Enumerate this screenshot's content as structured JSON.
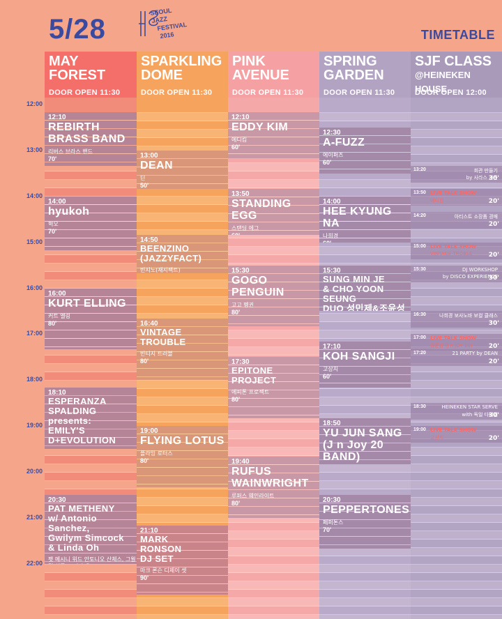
{
  "header": {
    "date": "5/28",
    "logo_lines": [
      "SEOUL",
      "JAZZ",
      "FESTIVAL",
      "2016"
    ],
    "timetable_label": "TIMETABLE"
  },
  "hours": [
    "12:00",
    "13:00",
    "14:00",
    "15:00",
    "16:00",
    "17:00",
    "18:00",
    "19:00",
    "20:00",
    "21:00",
    "22:00"
  ],
  "stages": [
    {
      "title": [
        "MAY",
        "FOREST"
      ],
      "subtitle": "",
      "door": "DOOR OPEN 11:30",
      "head_color": "#f46e6a",
      "stripe_colors": [
        "#f28c7a",
        "#f5a58a"
      ],
      "events": [
        {
          "time": "12:10",
          "name": [
            "REBIRTH",
            "BRASS BAND"
          ],
          "ko": "리버스 브라스 밴드",
          "dur": "70'",
          "start": 130,
          "end": 200,
          "color": "#b58597"
        },
        {
          "time": "14:00",
          "name": [
            "hyukoh"
          ],
          "ko": "혁오",
          "dur": "70'",
          "start": 240,
          "end": 310,
          "color": "#b58597"
        },
        {
          "time": "16:00",
          "name": [
            "KURT ELLING"
          ],
          "ko": "커트 엘링",
          "dur": "80'",
          "start": 360,
          "end": 440,
          "color": "#b58597"
        },
        {
          "time": "18:10",
          "name": [
            "ESPERANZA",
            "SPALDING",
            "presents:",
            "EMILY'S D+EVOLUTION"
          ],
          "ko": "에스페란자 스팔딩 프레젠트: 에밀리스 디+에볼루션",
          "dur": "80'",
          "start": 490,
          "end": 570,
          "color": "#b58597"
        },
        {
          "time": "20:30",
          "name": [
            "PAT METHENY",
            "w/ Antonio Sanchez,",
            "Gwilym Simcock",
            "& Linda Oh"
          ],
          "ko": "팻 메시니 위드 안토니오 산체스, 그윌림 심콕 & 린다 오",
          "dur": "90'",
          "start": 630,
          "end": 720,
          "color": "#b58597"
        }
      ]
    },
    {
      "title": [
        "SPARKLING",
        "DOME"
      ],
      "subtitle": "",
      "door": "DOOR OPEN 11:30",
      "head_color": "#f6a35e",
      "stripe_colors": [
        "#f6a35e",
        "#f7b475"
      ],
      "events": [
        {
          "time": "13:00",
          "name": [
            "DEAN"
          ],
          "ko": "딘",
          "dur": "50'",
          "start": 180,
          "end": 230,
          "color": "#d99678"
        },
        {
          "time": "14:50",
          "name": [
            "BEENZINO (JAZZYFACT)"
          ],
          "ko": "빈지노(재지팩트)",
          "dur": "50'",
          "start": 290,
          "end": 340,
          "color": "#d99678"
        },
        {
          "time": "16:40",
          "name": [
            "VINTAGE TROUBLE"
          ],
          "ko": "빈티지 트러블",
          "dur": "80'",
          "start": 400,
          "end": 480,
          "color": "#d99678"
        },
        {
          "time": "19:00",
          "name": [
            "FLYING LOTUS"
          ],
          "ko": "플라잉 로터스",
          "dur": "80'",
          "start": 540,
          "end": 620,
          "color": "#d99678"
        },
        {
          "time": "21:10",
          "name": [
            "MARK",
            "RONSON",
            "DJ SET"
          ],
          "ko": "마크 론슨 디제이 셋",
          "dur": "90'",
          "start": 670,
          "end": 760,
          "color": "#c9848a"
        }
      ]
    },
    {
      "title": [
        "PINK",
        "AVENUE"
      ],
      "subtitle": "",
      "door": "DOOR OPEN 11:30",
      "head_color": "#f5a0a2",
      "stripe_colors": [
        "#f5a8a8",
        "#f7b8b6"
      ],
      "events": [
        {
          "time": "12:10",
          "name": [
            "EDDY KIM"
          ],
          "ko": "에디킴",
          "dur": "60'",
          "start": 130,
          "end": 190,
          "color": "#c998a6"
        },
        {
          "time": "13:50",
          "name": [
            "STANDING EGG"
          ],
          "ko": "스탠딩 에그",
          "dur": "60'",
          "start": 230,
          "end": 290,
          "color": "#c998a6"
        },
        {
          "time": "15:30",
          "name": [
            "GOGO PENGUIN"
          ],
          "ko": "고고 펭귄",
          "dur": "80'",
          "start": 330,
          "end": 410,
          "color": "#c998a6"
        },
        {
          "time": "17:30",
          "name": [
            "EPITONE PROJECT"
          ],
          "ko": "에피톤 프로젝트",
          "dur": "80'",
          "start": 450,
          "end": 530,
          "color": "#c998a6"
        },
        {
          "time": "19:40",
          "name": [
            "RUFUS",
            "WAINWRIGHT"
          ],
          "ko": "루퍼스 웨인라이트",
          "dur": "80'",
          "start": 580,
          "end": 660,
          "color": "#c998a6"
        }
      ]
    },
    {
      "title": [
        "SPRING",
        "GARDEN"
      ],
      "subtitle": "",
      "door": "DOOR OPEN 11:30",
      "head_color": "#b3a3c3",
      "stripe_colors": [
        "#b8aac8",
        "#c4b6d1"
      ],
      "events": [
        {
          "time": "12:30",
          "name": [
            "A-FUZZ"
          ],
          "ko": "에이퍼즈",
          "dur": "60'",
          "start": 150,
          "end": 210,
          "color": "#a589a9"
        },
        {
          "time": "14:00",
          "name": [
            "HEE KYUNG NA"
          ],
          "ko": "나희경",
          "dur": "60'",
          "start": 240,
          "end": 300,
          "color": "#a589a9"
        },
        {
          "time": "15:30",
          "name": [
            "SUNG MIN JE",
            "& CHO YOON SEUNG",
            "DUO 성민제&조윤성 듀오"
          ],
          "ko": "",
          "dur": "60'",
          "start": 330,
          "end": 390,
          "color": "#a589a9"
        },
        {
          "time": "17:10",
          "name": [
            "KOH SANGJI"
          ],
          "ko": "고상지",
          "dur": "60'",
          "start": 430,
          "end": 490,
          "color": "#a589a9"
        },
        {
          "time": "18:50",
          "name": [
            "YU JUN SANG",
            "(J n Joy 20 BAND)"
          ],
          "ko": "유준상(J n Joy 20 BAND)",
          "dur": "60'",
          "start": 530,
          "end": 590,
          "color": "#a589a9"
        },
        {
          "time": "20:30",
          "name": [
            "PEPPERTONES"
          ],
          "ko": "페퍼톤스",
          "dur": "70'",
          "start": 630,
          "end": 700,
          "color": "#a589a9"
        }
      ]
    },
    {
      "title": [
        "SJF CLASS"
      ],
      "subtitle": "@HEINEKEN HOUSE",
      "door": "DOOR OPEN 12:00",
      "head_color": "#a89ab8",
      "stripe_colors": [
        "#b2a5c3",
        "#bfb1cd"
      ],
      "events": [],
      "sessions": [
        {
          "time": "13:20",
          "tag": "",
          "title": "회관 만들기",
          "sub": "by 사라스 가든",
          "dur": "30'",
          "start": 200
        },
        {
          "time": "13:50",
          "tag": "LIVE TALK SHOW",
          "title": "",
          "sub": "에디킴",
          "dur": "20'",
          "start": 230,
          "highlight": true
        },
        {
          "time": "14:20",
          "tag": "",
          "title": "아티스트 소장품 경매",
          "sub": "",
          "dur": "20'",
          "start": 260
        },
        {
          "time": "15:00",
          "tag": "LIVE TALK SHOW",
          "title": "",
          "sub": "VINTAGE TROBLE",
          "dur": "20'",
          "start": 300,
          "highlight": true
        },
        {
          "time": "15:30",
          "tag": "",
          "title": "DJ WORKSHOP",
          "sub": "by DISCO EXPERIENCE",
          "dur": "30'",
          "start": 330
        },
        {
          "time": "16:30",
          "tag": "",
          "title": "나희경 보사노바 보컬 클래스",
          "sub": "",
          "dur": "30'",
          "start": 390
        },
        {
          "time": "17:00",
          "tag": "LIVE TALK SHOW",
          "title": "",
          "sub": "유준상 (J n JOY 20)",
          "dur": "20'",
          "start": 420,
          "highlight": true
        },
        {
          "time": "17:20",
          "tag": "",
          "title": "21 PARTY by DEAN",
          "sub": "",
          "dur": "20'",
          "start": 440
        },
        {
          "time": "18:30",
          "tag": "",
          "title": "HEINEKEN STAR SERVE",
          "sub": "with 독일 다니엘",
          "dur": "30'",
          "start": 510
        },
        {
          "time": "19:00",
          "tag": "LIVE TALK SHOW",
          "title": "",
          "sub": "고상지",
          "dur": "20'",
          "start": 540,
          "highlight": true
        }
      ]
    }
  ]
}
